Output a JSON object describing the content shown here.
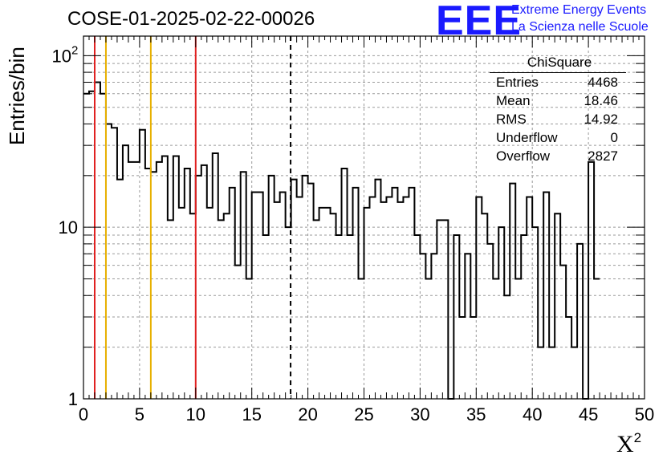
{
  "title": "COSE-01-2025-02-22-00026",
  "logo": {
    "mark": "EEE",
    "line1": "Extreme Energy Events",
    "line2": "La Scienza nelle Scuole",
    "color": "#1a1aff"
  },
  "stats_box": {
    "title": "ChiSquare",
    "rows": [
      {
        "label": "Entries",
        "value": "4468"
      },
      {
        "label": "Mean",
        "value": "18.46"
      },
      {
        "label": "RMS",
        "value": "14.92"
      },
      {
        "label": "Underflow",
        "value": "0"
      },
      {
        "label": "Overflow",
        "value": "2827"
      }
    ]
  },
  "chart_data": {
    "type": "histogram",
    "title": "COSE-01-2025-02-22-00026",
    "xlabel": "X",
    "xlabel_sup": "2",
    "ylabel": "Entries/bin",
    "xlim": [
      0,
      50
    ],
    "ylim": [
      1,
      130
    ],
    "yscale": "log",
    "grid": true,
    "bin_width": 0.5,
    "x_ticks": [
      "0",
      "5",
      "10",
      "15",
      "20",
      "25",
      "30",
      "35",
      "40",
      "45",
      "50"
    ],
    "y_ticks": [
      {
        "value": 1,
        "label": "1",
        "sup": ""
      },
      {
        "value": 10,
        "label": "10",
        "sup": ""
      },
      {
        "value": 100,
        "label": "10",
        "sup": "2"
      }
    ],
    "counts": [
      60,
      62,
      70,
      60,
      40,
      38,
      19,
      30,
      24,
      24,
      37,
      22,
      21,
      24,
      26,
      11,
      26,
      13,
      22,
      12,
      20,
      23,
      13,
      27,
      11,
      12,
      17,
      6,
      21,
      5,
      16,
      16,
      9,
      20,
      14,
      16,
      10,
      19,
      15,
      20,
      18,
      11,
      13,
      13,
      12,
      9,
      22,
      9,
      17,
      5,
      13,
      15,
      19,
      14,
      15,
      17,
      14,
      15,
      17,
      9,
      7,
      5,
      7,
      11,
      11,
      0,
      9,
      3,
      7,
      3,
      15,
      12,
      8,
      5,
      10,
      4,
      18,
      5,
      9,
      15,
      10,
      2,
      16,
      2,
      12,
      6,
      3,
      2,
      8,
      0,
      24,
      5
    ],
    "vertical_lines": [
      {
        "x": 1,
        "color": "#e02020",
        "style": "solid"
      },
      {
        "x": 2,
        "color": "#e8b000",
        "style": "solid"
      },
      {
        "x": 6,
        "color": "#e8b000",
        "style": "solid"
      },
      {
        "x": 10,
        "color": "#e02020",
        "style": "solid"
      },
      {
        "x": 18.46,
        "color": "#000000",
        "style": "dashed"
      }
    ]
  }
}
